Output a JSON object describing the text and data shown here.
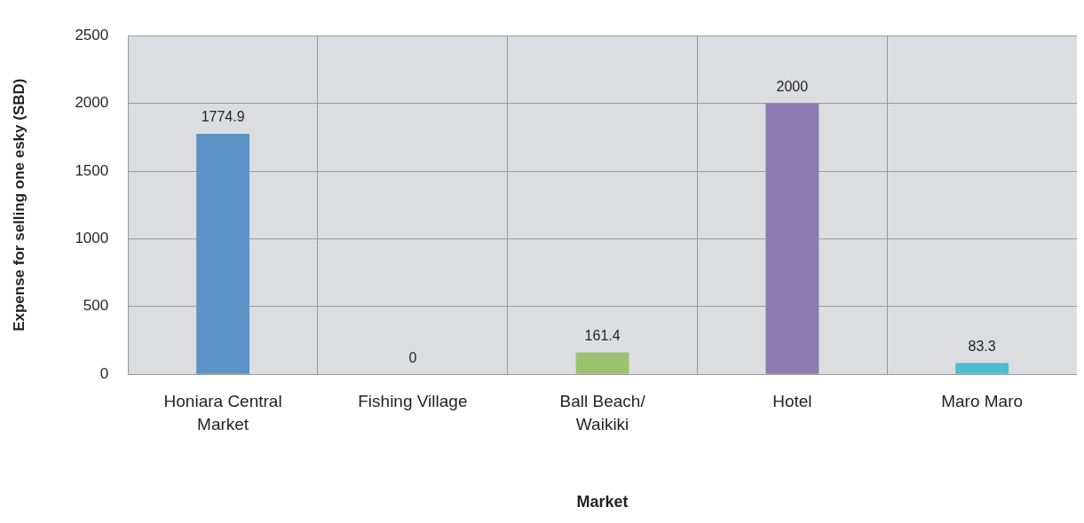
{
  "chart_data": {
    "type": "bar",
    "xlabel": "Market",
    "ylabel": "Expense for selling one esky (SBD)",
    "categories": [
      "Honiara Central Market",
      "Fishing Village",
      "Ball Beach/ Waikiki",
      "Hotel",
      "Maro Maro"
    ],
    "values": [
      1774.9,
      0,
      161.4,
      2000,
      83.3
    ],
    "colors": [
      "#5b93c7",
      "#c0504d",
      "#9dc26f",
      "#8b7bb0",
      "#4fbcd0"
    ],
    "ylim": [
      0,
      2500
    ],
    "yticks": [
      0,
      500,
      1000,
      1500,
      2000,
      2500
    ],
    "grid": true,
    "legend": false,
    "data_labels": true
  }
}
